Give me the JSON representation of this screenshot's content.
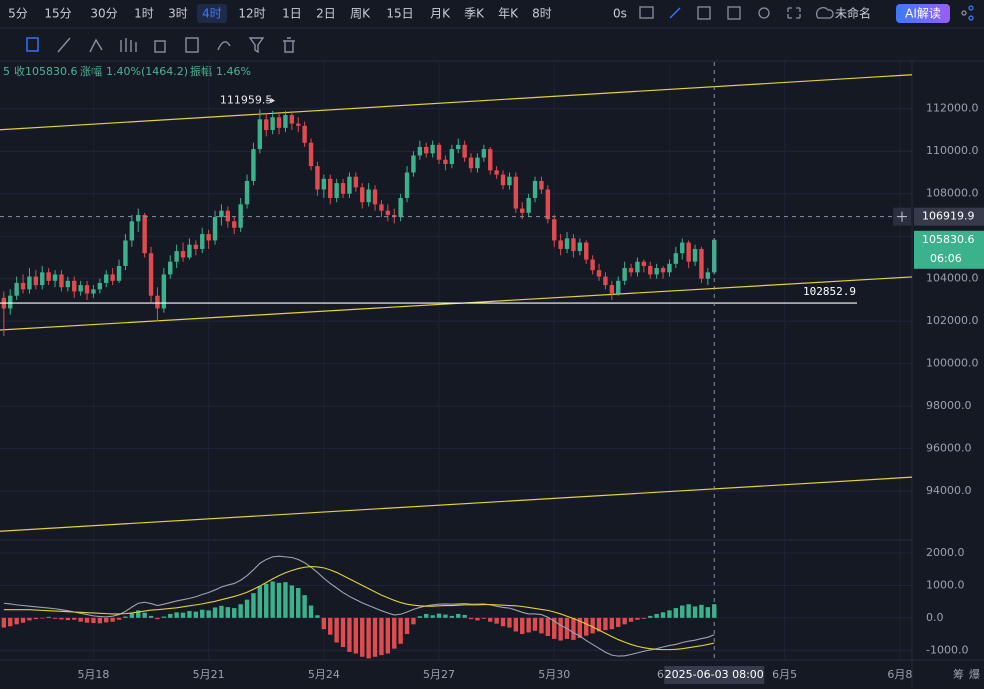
{
  "toolbar": {
    "intervals": [
      "5分",
      "15分",
      "30分",
      "1时",
      "3时",
      "4时",
      "12时",
      "1日",
      "2日",
      "周K",
      "15日",
      "月K",
      "季K",
      "年K",
      "8时"
    ],
    "active": 5,
    "delay": "0s",
    "layout_name": "未命名",
    "ai_button": "AI解读"
  },
  "info": {
    "prefix": "5",
    "close_label": "收",
    "close": "105830.6",
    "change_label": "涨幅",
    "change": "1.40%(1464.2)",
    "amp_label": "振幅",
    "amp": "1.46%"
  },
  "side": [
    "筹",
    "爆"
  ],
  "chart_data": [
    {
      "type": "candlestick",
      "up_color": "#3bb18c",
      "down_color": "#e04b4f",
      "xlim": [
        -0.6,
        141.9
      ],
      "ylim": [
        91700,
        114200
      ],
      "yticks": [
        {
          "value": 112000,
          "label": "112000.0"
        },
        {
          "value": 110000,
          "label": "110000.0"
        },
        {
          "value": 108000,
          "label": "108000.0"
        },
        {
          "value": 106000,
          "label": "106000.0"
        },
        {
          "value": 104000,
          "label": "104000.0"
        },
        {
          "value": 102000,
          "label": "102000.0"
        },
        {
          "value": 100000,
          "label": "100000.0"
        },
        {
          "value": 98000,
          "label": "98000.0"
        },
        {
          "value": 96000,
          "label": "96000.0"
        },
        {
          "value": 94000,
          "label": "94000.0"
        }
      ],
      "xticks": [
        {
          "value": 14,
          "label": "5月18"
        },
        {
          "value": 32,
          "label": "5月21"
        },
        {
          "value": 50,
          "label": "5月24"
        },
        {
          "value": 68,
          "label": "5月27"
        },
        {
          "value": 86,
          "label": "5月30"
        },
        {
          "value": 104,
          "label": "6月2"
        },
        {
          "value": 122,
          "label": "6月5"
        },
        {
          "value": 140,
          "label": "6月8"
        }
      ],
      "grid": true,
      "ohlc": [
        [
          103100,
          103400,
          101300,
          102600
        ],
        [
          102600,
          103500,
          102300,
          103200
        ],
        [
          103200,
          104100,
          103000,
          103800
        ],
        [
          103800,
          104200,
          103300,
          103500
        ],
        [
          103500,
          104500,
          103300,
          104100
        ],
        [
          104100,
          104400,
          103500,
          103700
        ],
        [
          103700,
          104600,
          103500,
          104300
        ],
        [
          104300,
          104500,
          103700,
          103900
        ],
        [
          103900,
          104400,
          103600,
          104200
        ],
        [
          104200,
          104400,
          103400,
          103600
        ],
        [
          103600,
          104100,
          103400,
          103900
        ],
        [
          103900,
          104100,
          103100,
          103400
        ],
        [
          103400,
          103900,
          103200,
          103700
        ],
        [
          103700,
          103900,
          103000,
          103300
        ],
        [
          103300,
          103700,
          103100,
          103500
        ],
        [
          103500,
          104000,
          103300,
          103800
        ],
        [
          103800,
          104400,
          103600,
          104200
        ],
        [
          104200,
          104500,
          103700,
          103900
        ],
        [
          103900,
          104900,
          103800,
          104600
        ],
        [
          104600,
          106100,
          104400,
          105800
        ],
        [
          105800,
          107000,
          105500,
          106700
        ],
        [
          106700,
          107300,
          106200,
          107000
        ],
        [
          107000,
          107100,
          105000,
          105200
        ],
        [
          105200,
          105500,
          102900,
          103200
        ],
        [
          103200,
          103600,
          102000,
          102600
        ],
        [
          102600,
          104500,
          102400,
          104200
        ],
        [
          104200,
          105100,
          104000,
          104800
        ],
        [
          104800,
          105600,
          104500,
          105300
        ],
        [
          105300,
          105700,
          104800,
          105000
        ],
        [
          105000,
          105900,
          104900,
          105600
        ],
        [
          105600,
          105800,
          105100,
          105400
        ],
        [
          105400,
          106400,
          105200,
          106100
        ],
        [
          106100,
          106300,
          105400,
          105800
        ],
        [
          105800,
          107200,
          105600,
          106900
        ],
        [
          106900,
          107500,
          106500,
          107200
        ],
        [
          107200,
          107400,
          106400,
          106700
        ],
        [
          106700,
          106900,
          106100,
          106400
        ],
        [
          106400,
          107800,
          106200,
          107500
        ],
        [
          107500,
          108900,
          107300,
          108600
        ],
        [
          108600,
          110400,
          108400,
          110100
        ],
        [
          110100,
          111959.5,
          109900,
          111500
        ],
        [
          111500,
          111800,
          110700,
          111000
        ],
        [
          111000,
          111900,
          110800,
          111600
        ],
        [
          111600,
          111800,
          110800,
          111100
        ],
        [
          111100,
          111900,
          110900,
          111700
        ],
        [
          111700,
          111900,
          111000,
          111300
        ],
        [
          111300,
          111600,
          110900,
          111200
        ],
        [
          111200,
          111400,
          110200,
          110400
        ],
        [
          110400,
          110600,
          109100,
          109300
        ],
        [
          109300,
          109500,
          107900,
          108200
        ],
        [
          108200,
          108900,
          107800,
          108700
        ],
        [
          108700,
          108900,
          107500,
          107800
        ],
        [
          107800,
          108700,
          107600,
          108500
        ],
        [
          108500,
          108700,
          107800,
          108000
        ],
        [
          108000,
          109000,
          107800,
          108800
        ],
        [
          108800,
          109000,
          108100,
          108300
        ],
        [
          108300,
          108500,
          107300,
          107600
        ],
        [
          107600,
          108500,
          107400,
          108200
        ],
        [
          108200,
          108400,
          107200,
          107500
        ],
        [
          107500,
          107700,
          106900,
          107200
        ],
        [
          107200,
          107500,
          106700,
          107000
        ],
        [
          107000,
          107300,
          106600,
          106900
        ],
        [
          106900,
          108000,
          106700,
          107800
        ],
        [
          107800,
          109300,
          107600,
          109000
        ],
        [
          109000,
          110000,
          108800,
          109800
        ],
        [
          109800,
          110500,
          109600,
          110200
        ],
        [
          110200,
          110400,
          109700,
          109900
        ],
        [
          109900,
          110500,
          109700,
          110300
        ],
        [
          110300,
          110400,
          109400,
          109600
        ],
        [
          109600,
          109800,
          109100,
          109400
        ],
        [
          109400,
          110300,
          109200,
          110100
        ],
        [
          110100,
          110600,
          109900,
          110300
        ],
        [
          110300,
          110500,
          109500,
          109700
        ],
        [
          109700,
          109900,
          109000,
          109200
        ],
        [
          109200,
          109900,
          109000,
          109700
        ],
        [
          109700,
          110300,
          109500,
          110100
        ],
        [
          110100,
          110200,
          108900,
          109100
        ],
        [
          109100,
          109300,
          108700,
          108900
        ],
        [
          108900,
          109100,
          108200,
          108400
        ],
        [
          108400,
          109000,
          108200,
          108800
        ],
        [
          108800,
          109000,
          107100,
          107300
        ],
        [
          107300,
          107600,
          106800,
          107100
        ],
        [
          107100,
          108000,
          106900,
          107800
        ],
        [
          107800,
          108800,
          107600,
          108600
        ],
        [
          108600,
          108800,
          108000,
          108200
        ],
        [
          108200,
          108400,
          106600,
          106800
        ],
        [
          106800,
          107000,
          105500,
          105800
        ],
        [
          105800,
          106100,
          105100,
          105400
        ],
        [
          105400,
          106200,
          105200,
          105900
        ],
        [
          105900,
          106100,
          105000,
          105300
        ],
        [
          105300,
          105900,
          105100,
          105700
        ],
        [
          105700,
          105800,
          104700,
          104900
        ],
        [
          104900,
          105100,
          104200,
          104400
        ],
        [
          104400,
          104700,
          103900,
          104100
        ],
        [
          104100,
          104300,
          103500,
          103700
        ],
        [
          103700,
          103900,
          103000,
          103300
        ],
        [
          103300,
          104100,
          103200,
          103900
        ],
        [
          103900,
          104800,
          103700,
          104500
        ],
        [
          104500,
          104700,
          104100,
          104300
        ],
        [
          104300,
          105000,
          104100,
          104800
        ],
        [
          104800,
          104900,
          104300,
          104600
        ],
        [
          104600,
          104800,
          104000,
          104200
        ],
        [
          104200,
          104700,
          104000,
          104500
        ],
        [
          104500,
          104600,
          104000,
          104300
        ],
        [
          104300,
          104900,
          104100,
          104700
        ],
        [
          104700,
          105500,
          104500,
          105200
        ],
        [
          105200,
          105900,
          104900,
          105700
        ],
        [
          105700,
          105800,
          104500,
          104800
        ],
        [
          104800,
          105600,
          104600,
          105400
        ],
        [
          105400,
          105500,
          103800,
          104000
        ],
        [
          104000,
          104500,
          103700,
          104300
        ],
        [
          104300,
          105900,
          104200,
          105830.6
        ]
      ],
      "hline": 102852.9,
      "hline_color": "#ffffff",
      "trend_lines": [
        [
          -0.6,
          111010,
          141.9,
          113600
        ],
        [
          -0.6,
          101585,
          141.9,
          104083
        ],
        [
          -0.6,
          92113,
          141.9,
          94658
        ]
      ],
      "trend_color": "#e2d13a",
      "crosshair": {
        "x": {
          "value": 111,
          "label": "2025-06-03 08:00"
        },
        "price": 106919.9
      },
      "countdown": "06:06"
    },
    {
      "type": "macd",
      "xlim": [
        -0.6,
        141.9
      ],
      "ylim": [
        -1300,
        2400
      ],
      "yticks": [
        {
          "value": 2000,
          "label": "2000.0"
        },
        {
          "value": 1000,
          "label": "1000.0"
        },
        {
          "value": 0,
          "label": "0.0"
        },
        {
          "value": -1000,
          "label": "-1000.0"
        }
      ],
      "up_color": "#3bb18c",
      "down_color": "#e04b4f",
      "histogram": [
        -300,
        -260,
        -200,
        -150,
        -80,
        -40,
        -20,
        30,
        -30,
        -50,
        -70,
        -60,
        -120,
        -150,
        -160,
        -170,
        -140,
        -120,
        -60,
        40,
        140,
        230,
        160,
        60,
        -40,
        40,
        120,
        170,
        160,
        210,
        190,
        250,
        230,
        320,
        370,
        330,
        300,
        420,
        560,
        760,
        980,
        1050,
        1120,
        1080,
        1100,
        1000,
        920,
        700,
        380,
        80,
        -350,
        -520,
        -760,
        -900,
        -1050,
        -1100,
        -1200,
        -1250,
        -1200,
        -1150,
        -1100,
        -950,
        -800,
        -500,
        -200,
        50,
        120,
        80,
        130,
        100,
        60,
        120,
        90,
        -40,
        -80,
        -30,
        -120,
        -180,
        -260,
        -300,
        -420,
        -500,
        -450,
        -400,
        -480,
        -560,
        -650,
        -700,
        -650,
        -680,
        -620,
        -550,
        -480,
        -420,
        -380,
        -350,
        -280,
        -200,
        -120,
        -60,
        -30,
        60,
        120,
        170,
        230,
        300,
        380,
        420,
        350,
        400,
        330,
        420
      ],
      "series": [
        {
          "color": "#9ea2b4",
          "values": [
            450,
            430,
            400,
            380,
            360,
            340,
            320,
            300,
            280,
            250,
            220,
            180,
            140,
            100,
            60,
            40,
            30,
            50,
            100,
            200,
            330,
            450,
            480,
            440,
            380,
            420,
            470,
            520,
            560,
            600,
            650,
            720,
            780,
            860,
            950,
            1010,
            1060,
            1160,
            1300,
            1480,
            1680,
            1800,
            1880,
            1900,
            1880,
            1860,
            1800,
            1700,
            1560,
            1400,
            1220,
            1060,
            920,
            780,
            660,
            560,
            460,
            380,
            300,
            220,
            150,
            90,
            110,
            180,
            260,
            320,
            370,
            400,
            420,
            430,
            420,
            430,
            440,
            420,
            420,
            430,
            400,
            360,
            320,
            300,
            240,
            170,
            120,
            120,
            100,
            20,
            -100,
            -230,
            -330,
            -460,
            -560,
            -700,
            -820,
            -940,
            -1060,
            -1150,
            -1180,
            -1170,
            -1130,
            -1080,
            -1030,
            -990,
            -950,
            -900,
            -850,
            -820,
            -760,
            -720,
            -690,
            -640,
            -600,
            -520
          ]
        },
        {
          "color": "#e2d13a",
          "values": [
            250,
            250,
            250,
            250,
            250,
            240,
            230,
            220,
            210,
            200,
            190,
            180,
            170,
            160,
            150,
            140,
            130,
            120,
            120,
            130,
            150,
            180,
            210,
            240,
            250,
            270,
            290,
            310,
            340,
            370,
            400,
            430,
            470,
            510,
            560,
            610,
            660,
            720,
            790,
            880,
            980,
            1090,
            1200,
            1300,
            1390,
            1460,
            1520,
            1560,
            1580,
            1570,
            1540,
            1480,
            1400,
            1300,
            1200,
            1100,
            1000,
            900,
            800,
            700,
            620,
            540,
            470,
            420,
            390,
            370,
            360,
            360,
            370,
            380,
            380,
            390,
            400,
            400,
            400,
            410,
            410,
            400,
            390,
            380,
            370,
            350,
            320,
            290,
            260,
            230,
            180,
            120,
            50,
            -20,
            -100,
            -190,
            -280,
            -380,
            -480,
            -580,
            -670,
            -750,
            -820,
            -880,
            -920,
            -950,
            -970,
            -980,
            -980,
            -970,
            -950,
            -920,
            -890,
            -860,
            -820,
            -780
          ]
        }
      ]
    }
  ]
}
